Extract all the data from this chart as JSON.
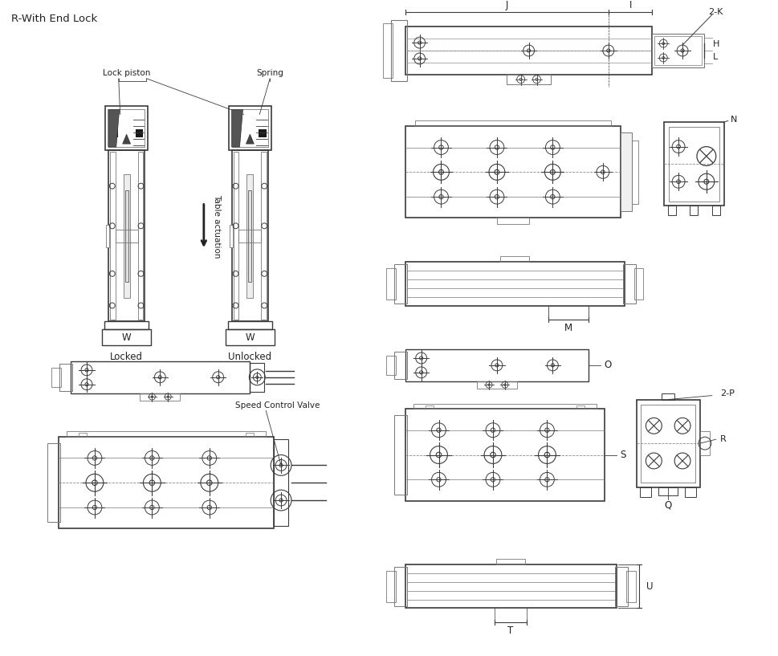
{
  "title": "R-With End Lock",
  "bg_color": "#ffffff",
  "line_color": "#3a3a3a",
  "light_line": "#777777",
  "dash_color": "#888888",
  "text_color": "#222222",
  "labels": {
    "title": "R-With End Lock",
    "lock_piston": "Lock piston",
    "spring": "Spring",
    "table_actuation": "Table actuation",
    "locked": "Locked",
    "unlocked": "Unlocked",
    "W": "W",
    "J": "J",
    "I": "I",
    "two_K": "2-K",
    "H": "H",
    "L": "L",
    "N": "N",
    "M": "M",
    "O": "O",
    "S": "S",
    "R": "R",
    "Q": "Q",
    "two_P": "2-P",
    "U": "U",
    "T": "T",
    "speed_control_valve": "Speed Control Valve"
  }
}
